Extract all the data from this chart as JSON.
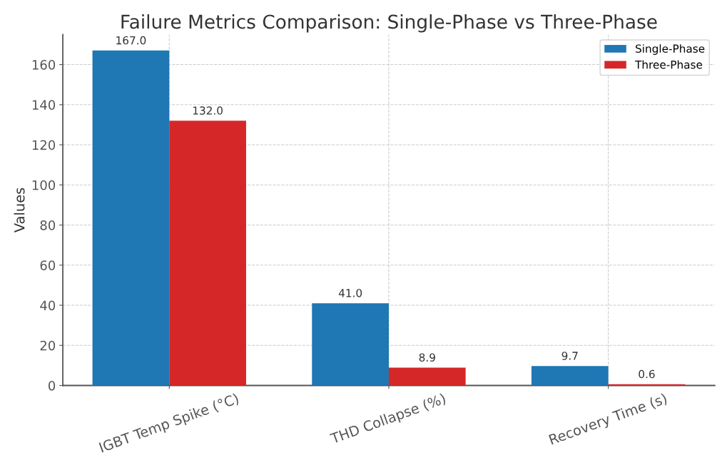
{
  "chart_data": {
    "type": "bar",
    "title": "Failure Metrics Comparison: Single-Phase vs Three-Phase",
    "ylabel": "Values",
    "categories": [
      "IGBT Temp Spike (°C)",
      "THD Collapse (%)",
      "Recovery Time (s)"
    ],
    "series": [
      {
        "name": "Single-Phase",
        "color": "#1f77b4",
        "values": [
          167.0,
          41.0,
          9.7
        ],
        "value_labels": [
          "167.0",
          "41.0",
          "9.7"
        ]
      },
      {
        "name": "Three-Phase",
        "color": "#d62728",
        "values": [
          132.0,
          8.9,
          0.6
        ],
        "value_labels": [
          "132.0",
          "8.9",
          "0.6"
        ]
      }
    ],
    "ylim": [
      0,
      175
    ],
    "yticks": [
      0,
      20,
      40,
      60,
      80,
      100,
      120,
      140,
      160
    ],
    "grid": true,
    "legend": "top right"
  }
}
